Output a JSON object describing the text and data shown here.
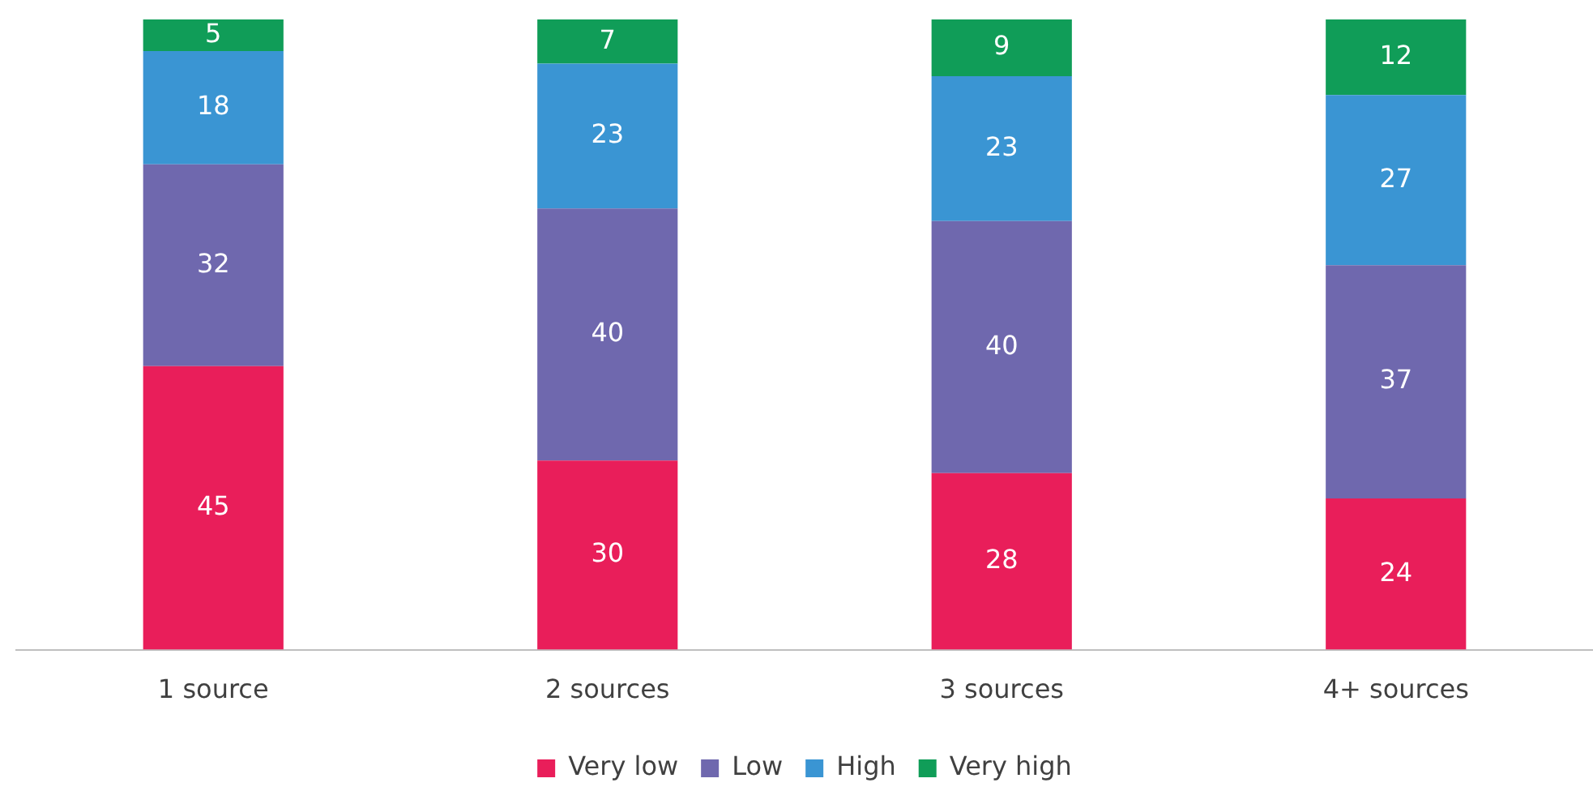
{
  "chart_data": {
    "type": "bar",
    "stacked": true,
    "categories": [
      "1 source",
      "2 sources",
      "3 sources",
      "4+ sources"
    ],
    "series": [
      {
        "name": "Very low",
        "color": "#e91e5a",
        "values": [
          45,
          30,
          28,
          24
        ]
      },
      {
        "name": "Low",
        "color": "#6f68ae",
        "values": [
          32,
          40,
          40,
          37
        ]
      },
      {
        "name": "High",
        "color": "#3a95d3",
        "values": [
          18,
          23,
          23,
          27
        ]
      },
      {
        "name": "Very high",
        "color": "#109d58",
        "values": [
          5,
          7,
          9,
          12
        ]
      }
    ],
    "data_labels": true,
    "legend": "bottom",
    "grid": false,
    "tick_labels": "x"
  }
}
